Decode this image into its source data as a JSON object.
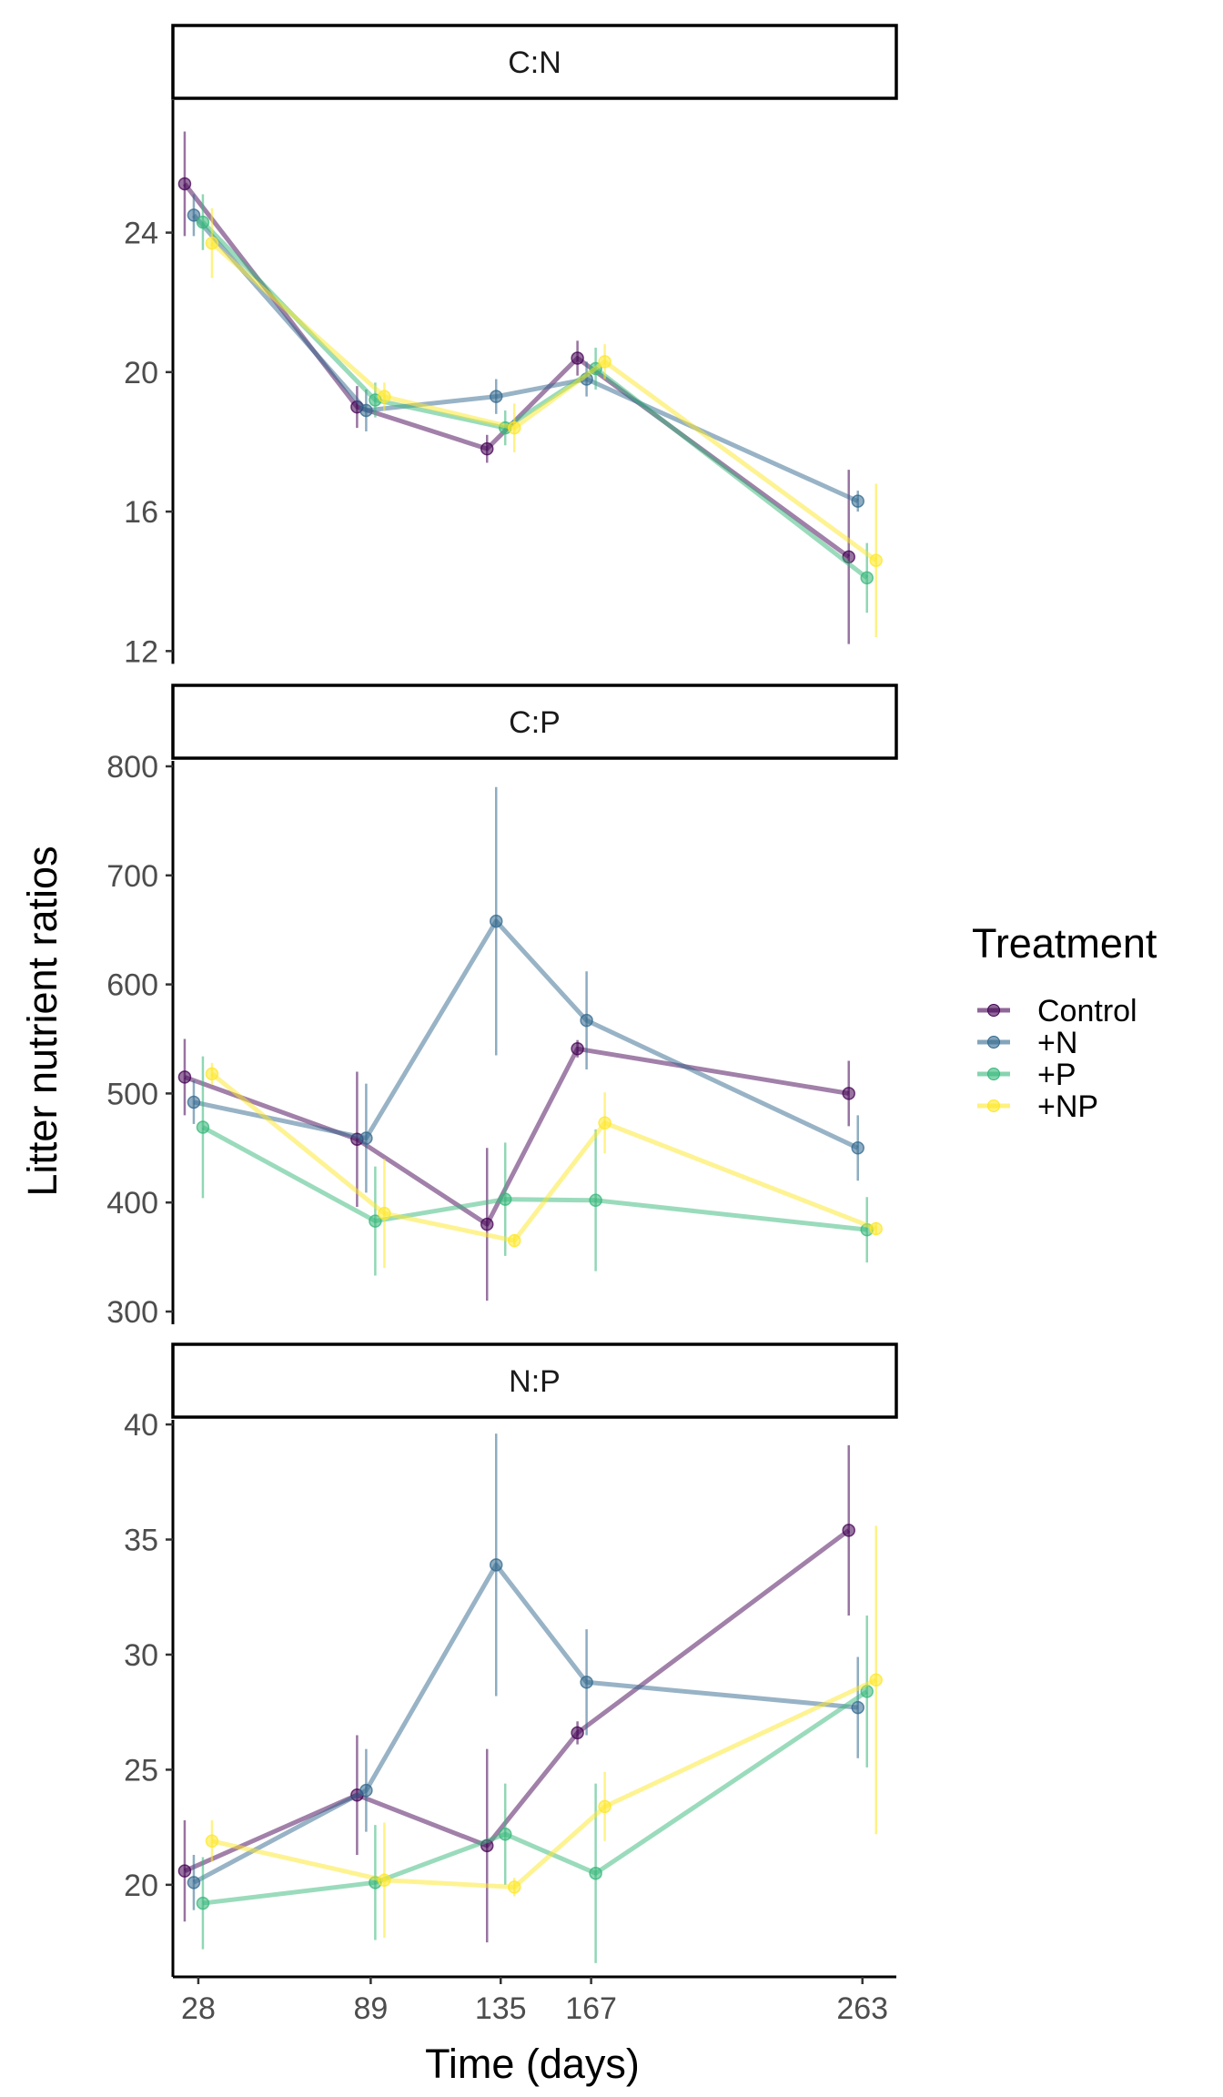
{
  "chart_data": {
    "type": "line",
    "xlabel": "Time (days)",
    "ylabel": "Litter nutrient ratios",
    "x_ticks": [
      28,
      89,
      135,
      167,
      263
    ],
    "x": [
      28,
      89,
      135,
      167,
      263
    ],
    "legend": {
      "title": "Treatment",
      "position": "right",
      "entries": [
        "Control",
        "+N",
        "+P",
        "+NP"
      ]
    },
    "series_colors": {
      "Control": "#440154",
      "+N": "#31688E",
      "+P": "#35B779",
      "+NP": "#FDE725"
    },
    "points_have_error_bars": true,
    "panels": [
      {
        "title": "C:N",
        "ylim": [
          11.8,
          27.8
        ],
        "yticks": [
          12,
          16,
          20,
          24
        ],
        "series": [
          {
            "name": "Control",
            "values": [
              25.4,
              19.0,
              17.8,
              20.4,
              14.7
            ],
            "errors": [
              1.5,
              0.6,
              0.4,
              0.5,
              2.5
            ]
          },
          {
            "name": "+N",
            "values": [
              24.5,
              18.9,
              19.3,
              19.8,
              16.3
            ],
            "errors": [
              0.6,
              0.6,
              0.5,
              0.5,
              0.3
            ]
          },
          {
            "name": "+P",
            "values": [
              24.3,
              19.2,
              18.4,
              20.1,
              14.1
            ],
            "errors": [
              0.8,
              0.5,
              0.5,
              0.6,
              1.0
            ]
          },
          {
            "name": "+NP",
            "values": [
              23.7,
              19.3,
              18.4,
              20.3,
              14.6
            ],
            "errors": [
              1.0,
              0.4,
              0.7,
              0.5,
              2.2
            ]
          }
        ]
      },
      {
        "title": "C:P",
        "ylim": [
          295,
          805
        ],
        "yticks": [
          300,
          400,
          500,
          600,
          700,
          800
        ],
        "series": [
          {
            "name": "Control",
            "values": [
              515,
              458,
              380,
              541,
              500
            ],
            "errors": [
              35,
              62,
              70,
              8,
              30
            ]
          },
          {
            "name": "+N",
            "values": [
              492,
              459,
              658,
              567,
              450
            ],
            "errors": [
              20,
              50,
              123,
              45,
              30
            ]
          },
          {
            "name": "+P",
            "values": [
              469,
              383,
              403,
              402,
              375
            ],
            "errors": [
              65,
              50,
              52,
              65,
              30
            ]
          },
          {
            "name": "+NP",
            "values": [
              518,
              390,
              365,
              473,
              376
            ],
            "errors": [
              10,
              50,
              6,
              28,
              6
            ]
          }
        ]
      },
      {
        "title": "N:P",
        "ylim": [
          16.0,
          40.2
        ],
        "yticks": [
          20,
          25,
          30,
          35,
          40
        ],
        "series": [
          {
            "name": "Control",
            "values": [
              20.6,
              23.9,
              21.7,
              26.6,
              35.4
            ],
            "errors": [
              2.2,
              2.6,
              4.2,
              0.5,
              3.7
            ]
          },
          {
            "name": "+N",
            "values": [
              20.1,
              24.1,
              33.9,
              28.8,
              27.7
            ],
            "errors": [
              1.2,
              1.8,
              5.7,
              2.3,
              2.2
            ]
          },
          {
            "name": "+P",
            "values": [
              19.2,
              20.1,
              22.2,
              20.5,
              28.4
            ],
            "errors": [
              2.0,
              2.5,
              2.2,
              3.9,
              3.3
            ]
          },
          {
            "name": "+NP",
            "values": [
              21.9,
              20.2,
              19.9,
              23.4,
              28.9
            ],
            "errors": [
              0.9,
              2.5,
              0.4,
              1.5,
              6.7
            ]
          }
        ]
      }
    ]
  }
}
